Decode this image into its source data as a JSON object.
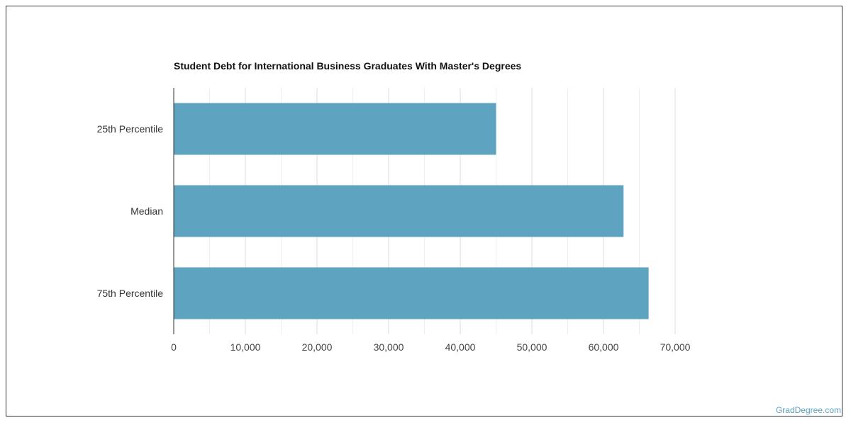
{
  "chart_data": {
    "type": "bar",
    "orientation": "horizontal",
    "title": "Student Debt for International Business Graduates With Master's Degrees",
    "categories": [
      "25th Percentile",
      "Median",
      "75th Percentile"
    ],
    "values": [
      45000,
      62800,
      66300
    ],
    "xlim": [
      0,
      70000
    ],
    "xticks": [
      0,
      10000,
      20000,
      30000,
      40000,
      50000,
      60000,
      70000
    ],
    "xtick_labels": [
      "0",
      "10,000",
      "20,000",
      "30,000",
      "40,000",
      "50,000",
      "60,000",
      "70,000"
    ],
    "grid": true,
    "bar_color": "#5ea3bf",
    "grid_color": "#dddddd"
  },
  "watermark": "GradDegree.com"
}
